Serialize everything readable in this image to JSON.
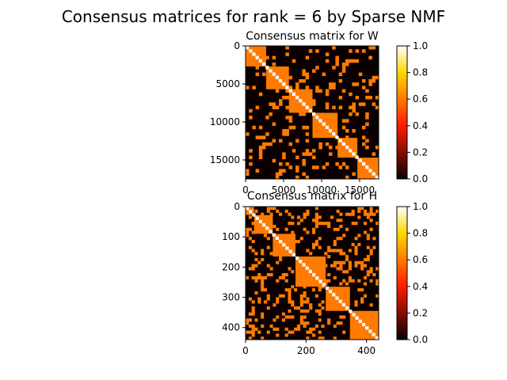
{
  "figure": {
    "title": "Consensus matrices for rank = 6 by Sparse NMF"
  },
  "colormap": {
    "name": "hot",
    "stops": [
      {
        "v": 0.0,
        "color": "#0b0000"
      },
      {
        "v": 0.4,
        "color": "#ff1a00"
      },
      {
        "v": 0.6,
        "color": "#ff7a00"
      },
      {
        "v": 0.8,
        "color": "#ffd800"
      },
      {
        "v": 1.0,
        "color": "#ffffff"
      }
    ]
  },
  "chart_data": [
    {
      "type": "heatmap",
      "title": "Consensus matrix for W",
      "n": 17500,
      "xlim": [
        0,
        17500
      ],
      "ylim": [
        17500,
        0
      ],
      "xticks": [
        0,
        5000,
        10000,
        15000
      ],
      "yticks": [
        0,
        5000,
        10000,
        15000
      ],
      "block_value": 0.6,
      "background_value": 0.0,
      "blocks": [
        [
          0,
          2700
        ],
        [
          2700,
          5700
        ],
        [
          5700,
          8800
        ],
        [
          8800,
          12100
        ],
        [
          12100,
          14700
        ],
        [
          14700,
          17500
        ]
      ],
      "scatter_value": 0.6,
      "scatter_grid": 40,
      "scatter_density": 0.18,
      "diagonal_value": 1.0,
      "colorbar": {
        "vmin": 0.0,
        "vmax": 1.0,
        "ticks": [
          "0.0",
          "0.2",
          "0.4",
          "0.6",
          "0.8",
          "1.0"
        ]
      }
    },
    {
      "type": "heatmap",
      "title": "Consensus matrix for H",
      "n": 440,
      "xlim": [
        0,
        440
      ],
      "ylim": [
        440,
        0
      ],
      "xticks": [
        0,
        200,
        400
      ],
      "yticks": [
        0,
        100,
        200,
        300,
        400
      ],
      "block_value": 0.6,
      "background_value": 0.0,
      "blocks": [
        [
          0,
          28
        ],
        [
          28,
          90
        ],
        [
          90,
          165
        ],
        [
          165,
          265
        ],
        [
          265,
          345
        ],
        [
          345,
          440
        ]
      ],
      "scatter_value": 0.6,
      "scatter_grid": 44,
      "scatter_density": 0.2,
      "diagonal_value": 1.0,
      "colorbar": {
        "vmin": 0.0,
        "vmax": 1.0,
        "ticks": [
          "0.0",
          "0.2",
          "0.4",
          "0.6",
          "0.8",
          "1.0"
        ]
      }
    }
  ]
}
